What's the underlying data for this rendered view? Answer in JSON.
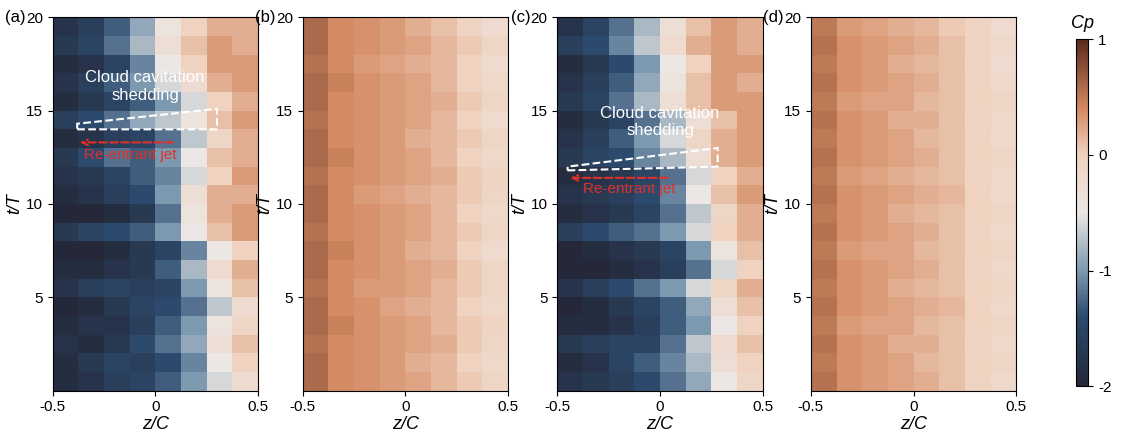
{
  "chart_data": [
    {
      "type": "heatmap",
      "title": "(a)",
      "xlabel": "z/C",
      "ylabel": "t/T",
      "xlim": [
        -0.5,
        0.5
      ],
      "ylim": [
        0,
        20
      ],
      "xticks": [
        -0.5,
        0,
        0.5
      ],
      "yticks": [
        5,
        10,
        15,
        20
      ],
      "annotations": [
        "Cloud cavitation\nshedding",
        "Re-entrant jet"
      ],
      "x": [
        -0.4375,
        -0.3125,
        -0.1875,
        -0.0625,
        0.0625,
        0.1875,
        0.3125,
        0.4375
      ],
      "y": [
        0.5,
        1.5,
        2.5,
        3.5,
        4.5,
        5.5,
        6.5,
        7.5,
        8.5,
        9.5,
        10.5,
        11.5,
        12.5,
        13.5,
        14.5,
        15.5,
        16.5,
        17.5,
        18.5,
        19.5
      ],
      "cells": [
        [
          -1.9,
          -1.8,
          -1.6,
          -1.5,
          -1.3,
          -1.0,
          -0.6,
          -0.2
        ],
        [
          -1.9,
          -1.7,
          -1.5,
          -1.6,
          -1.4,
          -1.1,
          -0.5,
          0.0
        ],
        [
          -1.8,
          -1.9,
          -1.7,
          -1.4,
          -1.2,
          -0.9,
          -0.3,
          0.1
        ],
        [
          -1.9,
          -1.8,
          -1.8,
          -1.6,
          -1.3,
          -1.0,
          -0.4,
          -0.1
        ],
        [
          -2.0,
          -1.9,
          -1.7,
          -1.5,
          -1.4,
          -1.2,
          -0.7,
          -0.2
        ],
        [
          -1.8,
          -1.6,
          -1.5,
          -1.6,
          -1.5,
          -1.0,
          -0.4,
          0.1
        ],
        [
          -1.9,
          -1.9,
          -1.8,
          -1.7,
          -1.3,
          -0.8,
          -0.2,
          0.2
        ],
        [
          -2.0,
          -2.0,
          -1.9,
          -1.7,
          -1.5,
          -1.1,
          -0.5,
          0.0
        ],
        [
          -1.7,
          -1.5,
          -1.4,
          -1.3,
          -1.0,
          -0.5,
          0.1,
          0.3
        ],
        [
          -2.0,
          -2.0,
          -1.9,
          -1.7,
          -1.2,
          -0.4,
          0.2,
          0.3
        ],
        [
          -1.9,
          -1.8,
          -1.6,
          -1.4,
          -1.0,
          -0.3,
          0.2,
          0.2
        ],
        [
          -1.8,
          -1.7,
          -1.5,
          -1.3,
          -1.1,
          -0.6,
          0.0,
          0.3
        ],
        [
          -1.7,
          -1.4,
          -1.2,
          -1.3,
          -1.0,
          -0.5,
          0.1,
          0.2
        ],
        [
          -1.9,
          -1.8,
          -1.6,
          -1.5,
          -1.2,
          -0.7,
          -0.1,
          0.2
        ],
        [
          -1.6,
          -1.4,
          -1.2,
          -0.9,
          -0.7,
          -0.4,
          0.1,
          0.3
        ],
        [
          -1.9,
          -1.7,
          -1.5,
          -1.3,
          -1.0,
          -0.6,
          0.0,
          0.2
        ],
        [
          -1.8,
          -1.6,
          -1.3,
          -1.0,
          -0.6,
          -0.2,
          0.2,
          0.3
        ],
        [
          -1.9,
          -1.8,
          -1.5,
          -1.1,
          -0.5,
          0.0,
          0.3,
          0.3
        ],
        [
          -1.7,
          -1.5,
          -1.2,
          -0.8,
          -0.3,
          0.1,
          0.3,
          0.2
        ],
        [
          -1.8,
          -1.6,
          -1.3,
          -0.9,
          -0.4,
          0.0,
          0.2,
          0.2
        ]
      ]
    },
    {
      "type": "heatmap",
      "title": "(b)",
      "xlabel": "z/C",
      "ylabel": "t/T",
      "xlim": [
        -0.5,
        0.5
      ],
      "ylim": [
        0,
        20
      ],
      "xticks": [
        -0.5,
        0,
        0.5
      ],
      "yticks": [
        5,
        10,
        15,
        20
      ],
      "x": [
        -0.4375,
        -0.3125,
        -0.1875,
        -0.0625,
        0.0625,
        0.1875,
        0.3125,
        0.4375
      ],
      "y": [
        0.5,
        1.5,
        2.5,
        3.5,
        4.5,
        5.5,
        6.5,
        7.5,
        8.5,
        9.5,
        10.5,
        11.5,
        12.5,
        13.5,
        14.5,
        15.5,
        16.5,
        17.5,
        18.5,
        19.5
      ],
      "cells": [
        [
          0.6,
          0.4,
          0.35,
          0.3,
          0.25,
          0.15,
          0.05,
          -0.1
        ],
        [
          0.6,
          0.4,
          0.35,
          0.3,
          0.2,
          0.15,
          0.0,
          -0.15
        ],
        [
          0.55,
          0.4,
          0.35,
          0.3,
          0.25,
          0.2,
          0.05,
          -0.1
        ],
        [
          0.6,
          0.45,
          0.35,
          0.3,
          0.25,
          0.15,
          0.05,
          -0.05
        ],
        [
          0.6,
          0.4,
          0.35,
          0.25,
          0.2,
          0.15,
          0.0,
          -0.15
        ],
        [
          0.55,
          0.4,
          0.3,
          0.3,
          0.25,
          0.15,
          0.05,
          -0.1
        ],
        [
          0.6,
          0.4,
          0.35,
          0.3,
          0.25,
          0.2,
          0.05,
          -0.1
        ],
        [
          0.6,
          0.45,
          0.35,
          0.3,
          0.2,
          0.15,
          0.0,
          -0.2
        ],
        [
          0.55,
          0.4,
          0.35,
          0.3,
          0.25,
          0.15,
          0.05,
          -0.1
        ],
        [
          0.6,
          0.4,
          0.35,
          0.3,
          0.25,
          0.15,
          0.0,
          -0.15
        ],
        [
          0.6,
          0.4,
          0.3,
          0.25,
          0.2,
          0.15,
          0.05,
          -0.1
        ],
        [
          0.55,
          0.4,
          0.35,
          0.3,
          0.25,
          0.2,
          0.05,
          -0.05
        ],
        [
          0.6,
          0.45,
          0.35,
          0.3,
          0.25,
          0.15,
          0.0,
          -0.15
        ],
        [
          0.6,
          0.4,
          0.35,
          0.3,
          0.2,
          0.15,
          0.05,
          -0.1
        ],
        [
          0.55,
          0.4,
          0.35,
          0.3,
          0.25,
          0.15,
          0.0,
          -0.2
        ],
        [
          0.6,
          0.4,
          0.35,
          0.3,
          0.25,
          0.2,
          0.05,
          -0.1
        ],
        [
          0.6,
          0.45,
          0.35,
          0.3,
          0.25,
          0.15,
          0.0,
          -0.15
        ],
        [
          0.55,
          0.4,
          0.3,
          0.25,
          0.2,
          0.15,
          0.0,
          -0.2
        ],
        [
          0.6,
          0.4,
          0.35,
          0.3,
          0.25,
          0.15,
          0.05,
          -0.1
        ],
        [
          0.6,
          0.4,
          0.35,
          0.3,
          0.2,
          0.1,
          -0.05,
          -0.2
        ]
      ]
    },
    {
      "type": "heatmap",
      "title": "(c)",
      "xlabel": "z/C",
      "ylabel": "t/T",
      "xlim": [
        -0.5,
        0.5
      ],
      "ylim": [
        0,
        20
      ],
      "xticks": [
        -0.5,
        0,
        0.5
      ],
      "yticks": [
        5,
        10,
        15,
        20
      ],
      "annotations": [
        "Cloud cavitation\nshedding",
        "Re-entrant jet"
      ],
      "x": [
        -0.4375,
        -0.3125,
        -0.1875,
        -0.0625,
        0.0625,
        0.1875,
        0.3125,
        0.4375
      ],
      "y": [
        0.5,
        1.5,
        2.5,
        3.5,
        4.5,
        5.5,
        6.5,
        7.5,
        8.5,
        9.5,
        10.5,
        11.5,
        12.5,
        13.5,
        14.5,
        15.5,
        16.5,
        17.5,
        18.5,
        19.5
      ],
      "cells": [
        [
          -1.8,
          -1.7,
          -1.6,
          -1.4,
          -1.2,
          -0.9,
          -0.5,
          -0.1
        ],
        [
          -1.9,
          -1.8,
          -1.5,
          -1.3,
          -1.1,
          -0.8,
          -0.3,
          0.0
        ],
        [
          -1.7,
          -1.6,
          -1.5,
          -1.5,
          -1.2,
          -0.7,
          -0.2,
          0.1
        ],
        [
          -1.9,
          -1.9,
          -1.8,
          -1.6,
          -1.3,
          -1.0,
          -0.5,
          0.0
        ],
        [
          -2.0,
          -1.9,
          -1.7,
          -1.5,
          -1.3,
          -0.9,
          -0.3,
          0.1
        ],
        [
          -1.8,
          -1.6,
          -1.4,
          -1.2,
          -1.0,
          -0.6,
          -0.1,
          0.2
        ],
        [
          -2.0,
          -2.0,
          -1.9,
          -1.8,
          -1.6,
          -1.2,
          -0.6,
          0.0
        ],
        [
          -2.0,
          -1.9,
          -1.8,
          -1.7,
          -1.5,
          -1.0,
          -0.4,
          0.1
        ],
        [
          -1.6,
          -1.4,
          -1.3,
          -1.2,
          -1.0,
          -0.6,
          0.0,
          0.2
        ],
        [
          -1.9,
          -1.8,
          -1.7,
          -1.5,
          -1.2,
          -0.7,
          -0.1,
          0.2
        ],
        [
          -1.8,
          -1.7,
          -1.6,
          -1.4,
          -1.1,
          -0.5,
          0.1,
          0.3
        ],
        [
          -1.9,
          -1.8,
          -1.7,
          -1.5,
          -1.2,
          -0.6,
          0.0,
          0.2
        ],
        [
          -1.7,
          -1.5,
          -1.4,
          -1.1,
          -0.8,
          -0.3,
          0.2,
          0.3
        ],
        [
          -1.8,
          -1.6,
          -1.3,
          -1.0,
          -0.6,
          -0.1,
          0.2,
          0.3
        ],
        [
          -1.9,
          -1.7,
          -1.5,
          -1.2,
          -0.8,
          -0.3,
          0.1,
          0.3
        ],
        [
          -1.7,
          -1.5,
          -1.2,
          -0.8,
          -0.3,
          0.1,
          0.3,
          0.3
        ],
        [
          -1.8,
          -1.6,
          -1.3,
          -0.9,
          -0.4,
          0.1,
          0.3,
          0.2
        ],
        [
          -1.9,
          -1.7,
          -1.4,
          -1.0,
          -0.5,
          0.0,
          0.3,
          0.3
        ],
        [
          -1.6,
          -1.4,
          -1.1,
          -0.7,
          -0.2,
          0.2,
          0.3,
          0.2
        ],
        [
          -1.8,
          -1.5,
          -1.2,
          -0.8,
          -0.3,
          0.1,
          0.3,
          0.2
        ]
      ]
    },
    {
      "type": "heatmap",
      "title": "(d)",
      "xlabel": "z/C",
      "ylabel": "t/T",
      "xlim": [
        -0.5,
        0.5
      ],
      "ylim": [
        0,
        20
      ],
      "xticks": [
        -0.5,
        0,
        0.5
      ],
      "yticks": [
        5,
        10,
        15,
        20
      ],
      "x": [
        -0.4375,
        -0.3125,
        -0.1875,
        -0.0625,
        0.0625,
        0.1875,
        0.3125,
        0.4375
      ],
      "y": [
        0.5,
        1.5,
        2.5,
        3.5,
        4.5,
        5.5,
        6.5,
        7.5,
        8.5,
        9.5,
        10.5,
        11.5,
        12.5,
        13.5,
        14.5,
        15.5,
        16.5,
        17.5,
        18.5,
        19.5
      ],
      "cells": [
        [
          0.55,
          0.35,
          0.3,
          0.25,
          0.2,
          0.1,
          0.0,
          -0.15
        ],
        [
          0.5,
          0.35,
          0.3,
          0.25,
          0.15,
          0.1,
          0.0,
          -0.1
        ],
        [
          0.55,
          0.35,
          0.3,
          0.2,
          0.2,
          0.1,
          -0.05,
          -0.15
        ],
        [
          0.5,
          0.3,
          0.25,
          0.25,
          0.15,
          0.1,
          0.0,
          -0.1
        ],
        [
          0.55,
          0.35,
          0.3,
          0.25,
          0.2,
          0.15,
          0.0,
          -0.15
        ],
        [
          0.5,
          0.35,
          0.3,
          0.2,
          0.15,
          0.1,
          0.0,
          -0.1
        ],
        [
          0.55,
          0.35,
          0.3,
          0.25,
          0.2,
          0.1,
          -0.05,
          -0.15
        ],
        [
          0.5,
          0.3,
          0.25,
          0.25,
          0.15,
          0.1,
          0.0,
          -0.1
        ],
        [
          0.55,
          0.35,
          0.3,
          0.25,
          0.2,
          0.1,
          0.0,
          -0.15
        ],
        [
          0.5,
          0.35,
          0.3,
          0.2,
          0.15,
          0.1,
          0.0,
          -0.1
        ],
        [
          0.55,
          0.35,
          0.3,
          0.25,
          0.2,
          0.15,
          0.0,
          -0.15
        ],
        [
          0.5,
          0.3,
          0.25,
          0.2,
          0.15,
          0.1,
          -0.05,
          -0.15
        ],
        [
          0.55,
          0.35,
          0.3,
          0.25,
          0.2,
          0.1,
          0.0,
          -0.1
        ],
        [
          0.5,
          0.35,
          0.3,
          0.25,
          0.15,
          0.1,
          0.0,
          -0.15
        ],
        [
          0.55,
          0.35,
          0.3,
          0.2,
          0.2,
          0.1,
          -0.05,
          -0.15
        ],
        [
          0.5,
          0.3,
          0.25,
          0.25,
          0.15,
          0.1,
          0.0,
          -0.1
        ],
        [
          0.55,
          0.35,
          0.3,
          0.25,
          0.2,
          0.1,
          0.0,
          -0.15
        ],
        [
          0.5,
          0.35,
          0.3,
          0.2,
          0.15,
          0.1,
          -0.05,
          -0.2
        ],
        [
          0.55,
          0.35,
          0.3,
          0.25,
          0.2,
          0.1,
          0.0,
          -0.15
        ],
        [
          0.5,
          0.3,
          0.25,
          0.2,
          0.15,
          0.05,
          -0.05,
          -0.2
        ]
      ]
    }
  ],
  "colorbar": {
    "label": "Cp",
    "lim": [
      -2,
      1
    ],
    "ticks": [
      1,
      0,
      -1,
      -2
    ]
  }
}
